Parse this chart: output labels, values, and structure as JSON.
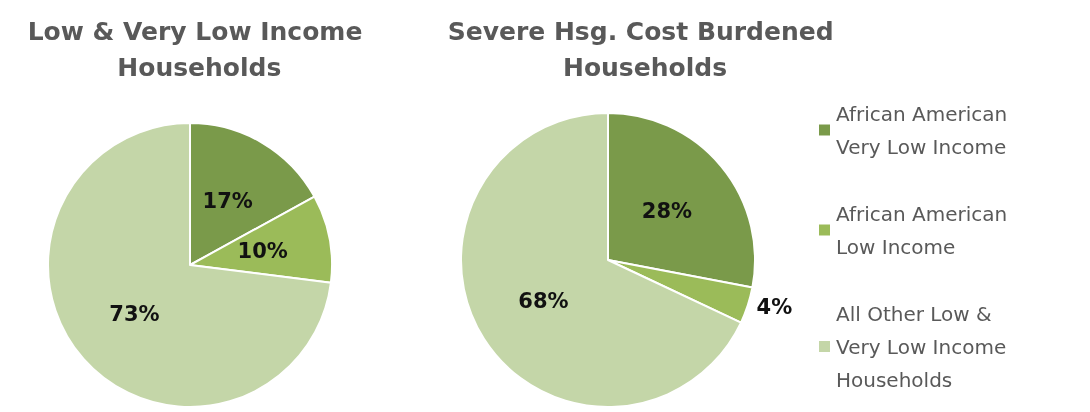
{
  "chart_data": [
    {
      "type": "pie",
      "title": "Low & Very Low Income Households",
      "categories": [
        null,
        null,
        null
      ],
      "values": [
        17,
        10,
        73
      ],
      "value_labels": [
        "17%",
        "10%",
        "73%"
      ],
      "colors": [
        "#7a9a4a",
        "#9bbb59",
        "#c4d6a8"
      ],
      "legend": false
    },
    {
      "type": "pie",
      "title": "Severe Hsg. Cost Burdened Households",
      "categories": [
        "African American Very Low Income",
        "African American Low Income",
        "All Other Low & Very Low Income Households"
      ],
      "values": [
        28,
        4,
        68
      ],
      "value_labels": [
        "28%",
        "4%",
        "68%"
      ],
      "colors": [
        "#7a9a4a",
        "#9bbb59",
        "#c4d6a8"
      ],
      "legend": "right"
    }
  ]
}
